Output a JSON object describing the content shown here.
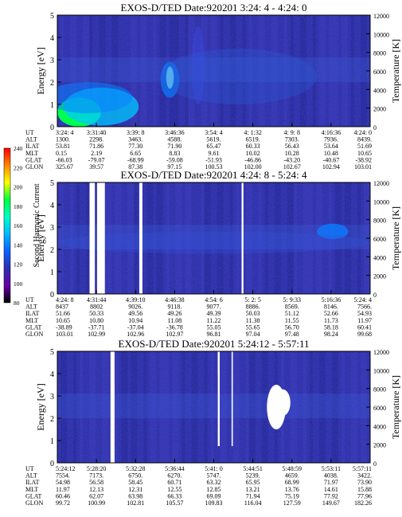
{
  "colors": {
    "background": "#2d2fa8",
    "frame": "#000000"
  },
  "colorbar": {
    "title": "Second Harmonic Current",
    "ticks": [
      "80",
      "100",
      "120",
      "140",
      "160",
      "180",
      "200",
      "220",
      "240"
    ],
    "stops": [
      "#000000",
      "#6a00a6",
      "#2d2fb0",
      "#0a60ff",
      "#00b8ff",
      "#00ffc8",
      "#00ff3c",
      "#ffff00",
      "#ff8800",
      "#ff0000"
    ]
  },
  "row_labels": [
    "UT",
    "ALT",
    "ILAT",
    "MLT",
    "GLAT",
    "GLON"
  ],
  "chart_data": [
    {
      "type": "heatmap",
      "title": "EXOS-D/TED   Date:920201  3:24: 4 - 4:24: 0",
      "ylabel": "Energy [eV]",
      "y2label": "Temperature [K]",
      "ylim": [
        0,
        5
      ],
      "y2lim": [
        0,
        12000
      ],
      "yticks": [
        "0",
        "1",
        "2",
        "3",
        "4",
        "5"
      ],
      "y2ticks": [
        "0",
        "2000",
        "4000",
        "6000",
        "8000",
        "10000",
        "12000"
      ],
      "x_table": [
        [
          "3:24: 4",
          "1300.",
          "53.81",
          "0.15",
          "-66.03",
          "325.67"
        ],
        [
          "3:31:40",
          "2298.",
          "71.86",
          "2.19",
          "-79.07",
          "39.57"
        ],
        [
          "3:39: 8",
          "3463.",
          "77.30",
          "6.65",
          "-68.99",
          "87.38"
        ],
        [
          "3:46:36",
          "4588.",
          "71.90",
          "8.83",
          "-59.08",
          "97.15"
        ],
        [
          "3:54: 4",
          "5619.",
          "65.47",
          "9.61",
          "-51.93",
          "100.53"
        ],
        [
          "4: 1:32",
          "6519.",
          "60.33",
          "10.02",
          "-46.86",
          "102.00"
        ],
        [
          "4: 9: 8",
          "7303.",
          "56.43",
          "10.28",
          "-43.20",
          "102.67"
        ],
        [
          "4:16:36",
          "7936.",
          "53.64",
          "10.48",
          "-40.67",
          "102.94"
        ],
        [
          "4:24: 0",
          "8439.",
          "51.69",
          "10.65",
          "-38.92",
          "103.01"
        ]
      ]
    },
    {
      "type": "heatmap",
      "title": "EXOS-D/TED   Date:920201  4:24: 8 - 5:24: 4",
      "ylabel": "Energy [eV]",
      "y2label": "Temperature [K]",
      "ylim": [
        0,
        5
      ],
      "y2lim": [
        0,
        12000
      ],
      "yticks": [
        "0",
        "1",
        "2",
        "3",
        "4",
        "5"
      ],
      "y2ticks": [
        "0",
        "2000",
        "4000",
        "6000",
        "8000",
        "10000",
        "12000"
      ],
      "x_table": [
        [
          "4:24: 8",
          "8437",
          "51.66",
          "10.65",
          "-38.89",
          "103.01"
        ],
        [
          "4:31:44",
          "8802",
          "50.33",
          "10.80",
          "-37.71",
          "102.99"
        ],
        [
          "4:39:10",
          "9026.",
          "49.56",
          "10.94",
          "-37.04",
          "102.96"
        ],
        [
          "4:46:38",
          "9118.",
          "49.26",
          "11.08",
          "-36.78",
          "102.97"
        ],
        [
          "4:54: 6",
          "9077.",
          "49.39",
          "11.22",
          "55.05",
          "96.81"
        ],
        [
          "5: 2: 5",
          "8886.",
          "50.03",
          "11.38",
          "55.65",
          "97.04"
        ],
        [
          "5: 9:33",
          "8569.",
          "51.12",
          "11.55",
          "56.70",
          "97.48"
        ],
        [
          "5:16:36",
          "8146.",
          "52.66",
          "11.73",
          "58.18",
          "98.24"
        ],
        [
          "5:24: 4",
          "7566.",
          "54.93",
          "11.97",
          "60.41",
          "99.68"
        ]
      ]
    },
    {
      "type": "heatmap",
      "title": "EXOS-D/TED   Date:920201  5:24:12 - 5:57:11",
      "ylabel": "Energy [eV]",
      "y2label": "Temperature [K]",
      "ylim": [
        0,
        5
      ],
      "y2lim": [
        0,
        12000
      ],
      "yticks": [
        "0",
        "1",
        "2",
        "3",
        "4",
        "5"
      ],
      "y2ticks": [
        "0",
        "2000",
        "4000",
        "6000",
        "8000",
        "10000",
        "12000"
      ],
      "x_table": [
        [
          "5:24:12",
          "7554.",
          "54.98",
          "11.97",
          "60.46",
          "99.72"
        ],
        [
          "5:28:20",
          "7173.",
          "56.58",
          "12.13",
          "62.07",
          "100.99"
        ],
        [
          "5:32:28",
          "6750.",
          "58.45",
          "12.31",
          "63.98",
          "102.81"
        ],
        [
          "5:36:44",
          "6270.",
          "60.71",
          "12.55",
          "66.33",
          "105.57"
        ],
        [
          "5:41: 0",
          "5747.",
          "63.32",
          "12.85",
          "69.09",
          "109.83"
        ],
        [
          "5:44:51",
          "5239.",
          "65.95",
          "13.21",
          "71.94",
          "116.04"
        ],
        [
          "5:48:59",
          "4659.",
          "68.99",
          "13.76",
          "75.19",
          "127.59"
        ],
        [
          "5:53:11",
          "4038.",
          "71.97",
          "14.61",
          "77.92",
          "149.67"
        ],
        [
          "5:57:11",
          "3422.",
          "73.90",
          "15.88",
          "77.96",
          "182.26"
        ]
      ]
    }
  ]
}
